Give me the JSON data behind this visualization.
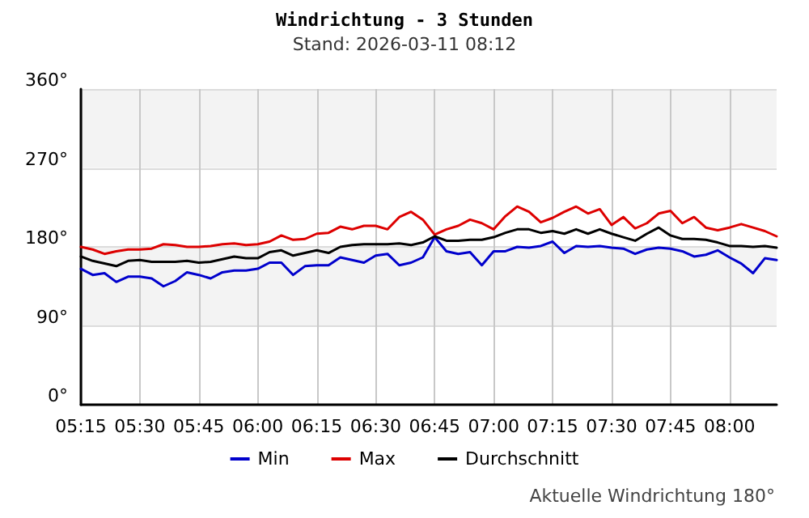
{
  "chart_data": {
    "type": "line",
    "title": "Windrichtung - 3 Stunden",
    "subtitle": "Stand: 2026-03-11 08:12",
    "annotations": [
      "Aktuelle Windrichtung 180°"
    ],
    "x": [
      5.25,
      5.3,
      5.35,
      5.4,
      5.45,
      5.5,
      5.55,
      5.6,
      5.65,
      5.7,
      5.75,
      5.8,
      5.85,
      5.9,
      5.95,
      6.0,
      6.05,
      6.1,
      6.15,
      6.2,
      6.25,
      6.3,
      6.35,
      6.4,
      6.45,
      6.5,
      6.55,
      6.6,
      6.65,
      6.7,
      6.75,
      6.8,
      6.85,
      6.9,
      6.95,
      7.0,
      7.05,
      7.1,
      7.15,
      7.2,
      7.25,
      7.3,
      7.35,
      7.4,
      7.45,
      7.5,
      7.55,
      7.6,
      7.65,
      7.7,
      7.75,
      7.8,
      7.85,
      7.9,
      7.95,
      8.0,
      8.05,
      8.1,
      8.15,
      8.2
    ],
    "series": [
      {
        "name": "Min",
        "color": "#0000cc",
        "values": [
          155,
          148,
          150,
          140,
          146,
          146,
          144,
          135,
          141,
          151,
          148,
          144,
          151,
          153,
          153,
          155,
          162,
          162,
          148,
          158,
          159,
          159,
          168,
          165,
          162,
          170,
          172,
          159,
          162,
          168,
          191,
          175,
          172,
          174,
          159,
          175,
          175,
          180,
          179,
          181,
          186,
          173,
          181,
          180,
          181,
          179,
          178,
          172,
          177,
          179,
          178,
          175,
          169,
          171,
          176,
          168,
          161,
          150,
          167,
          165
        ]
      },
      {
        "name": "Max",
        "color": "#dd0000",
        "values": [
          180,
          177,
          172,
          175,
          177,
          177,
          178,
          183,
          182,
          180,
          180,
          181,
          183,
          184,
          182,
          183,
          186,
          193,
          188,
          189,
          195,
          196,
          203,
          200,
          204,
          204,
          200,
          214,
          220,
          211,
          194,
          200,
          204,
          211,
          207,
          200,
          215,
          226,
          220,
          208,
          213,
          220,
          226,
          218,
          223,
          205,
          214,
          201,
          207,
          218,
          221,
          207,
          214,
          202,
          199,
          202,
          206,
          202,
          198,
          192
        ]
      },
      {
        "name": "Durchschnitt",
        "color": "#000000",
        "values": [
          169,
          164,
          161,
          158,
          164,
          165,
          163,
          163,
          163,
          164,
          162,
          163,
          166,
          169,
          167,
          167,
          174,
          176,
          170,
          173,
          176,
          173,
          180,
          182,
          183,
          183,
          183,
          184,
          182,
          185,
          192,
          187,
          187,
          188,
          188,
          191,
          196,
          200,
          200,
          196,
          198,
          195,
          200,
          195,
          200,
          195,
          191,
          187,
          195,
          202,
          193,
          189,
          189,
          188,
          185,
          181,
          181,
          180,
          181,
          179
        ]
      }
    ],
    "xlim": [
      5.25,
      8.2
    ],
    "xticks": [
      {
        "value": 5.25,
        "label": "05:15"
      },
      {
        "value": 5.5,
        "label": "05:30"
      },
      {
        "value": 5.75,
        "label": "05:45"
      },
      {
        "value": 6.0,
        "label": "06:00"
      },
      {
        "value": 6.25,
        "label": "06:15"
      },
      {
        "value": 6.5,
        "label": "06:30"
      },
      {
        "value": 6.75,
        "label": "06:45"
      },
      {
        "value": 7.0,
        "label": "07:00"
      },
      {
        "value": 7.25,
        "label": "07:15"
      },
      {
        "value": 7.5,
        "label": "07:30"
      },
      {
        "value": 7.75,
        "label": "07:45"
      },
      {
        "value": 8.0,
        "label": "08:00"
      }
    ],
    "ylim": [
      0,
      360
    ],
    "yticks": [
      {
        "value": 0,
        "label": "0°"
      },
      {
        "value": 90,
        "label": "90°"
      },
      {
        "value": 180,
        "label": "180°"
      },
      {
        "value": 270,
        "label": "270°"
      },
      {
        "value": 360,
        "label": "360°"
      }
    ],
    "grid": true,
    "legend": "bottom",
    "marker": "none",
    "line_style": "solid"
  }
}
